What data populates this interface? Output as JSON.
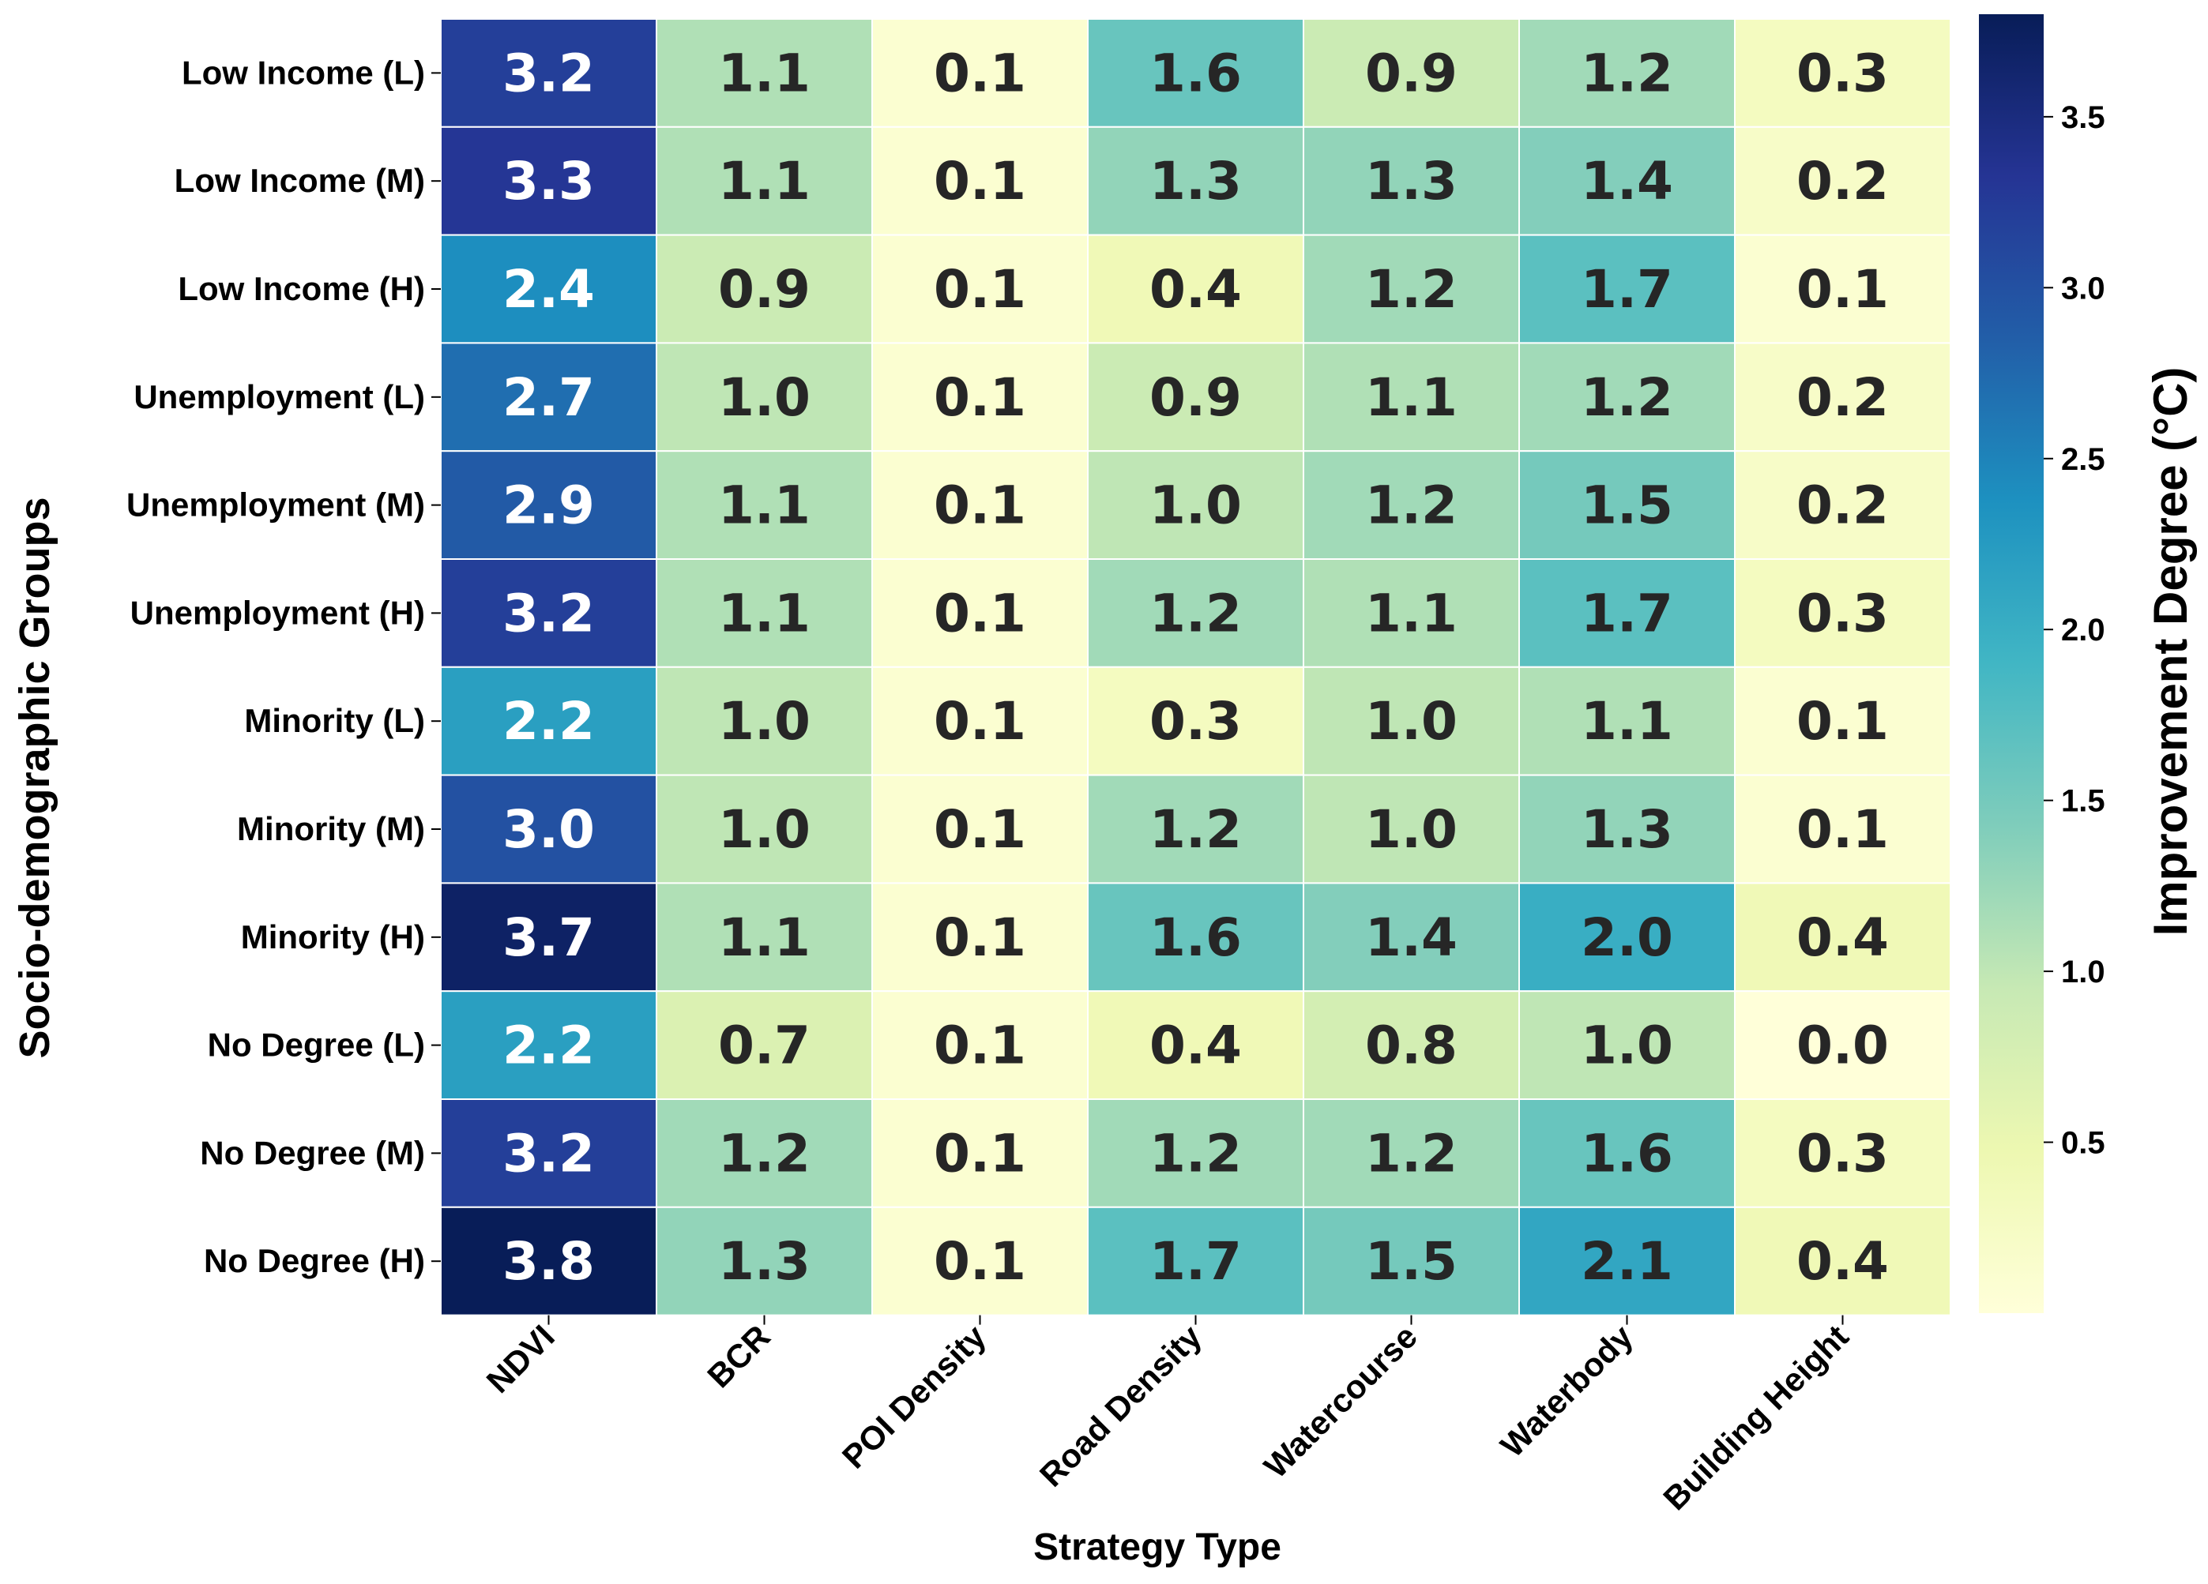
{
  "chart_data": {
    "type": "heatmap",
    "title": "",
    "xlabel": "Strategy Type",
    "ylabel": "Socio-demographic Groups",
    "colorbar_label": "Improvement Degree (°C)",
    "colormap": "YlGnBu",
    "colorbar_range": [
      0.0,
      3.8
    ],
    "colorbar_ticks": [
      0.5,
      1.0,
      1.5,
      2.0,
      2.5,
      3.0,
      3.5
    ],
    "colorbar_tick_labels": [
      "0.5",
      "1.0",
      "1.5",
      "2.0",
      "2.5",
      "3.0",
      "3.5"
    ],
    "columns": [
      "NDVI",
      "BCR",
      "POI Density",
      "Road Density",
      "Watercourse",
      "Waterbody",
      "Building Height"
    ],
    "rows": [
      "Low Income (L)",
      "Low Income (M)",
      "Low Income (H)",
      "Unemployment (L)",
      "Unemployment (M)",
      "Unemployment (H)",
      "Minority (L)",
      "Minority (M)",
      "Minority (H)",
      "No Degree (L)",
      "No Degree (M)",
      "No Degree (H)"
    ],
    "values": [
      [
        3.2,
        1.1,
        0.1,
        1.6,
        0.9,
        1.2,
        0.3
      ],
      [
        3.3,
        1.1,
        0.1,
        1.3,
        1.3,
        1.4,
        0.2
      ],
      [
        2.4,
        0.9,
        0.1,
        0.4,
        1.2,
        1.7,
        0.1
      ],
      [
        2.7,
        1.0,
        0.1,
        0.9,
        1.1,
        1.2,
        0.2
      ],
      [
        2.9,
        1.1,
        0.1,
        1.0,
        1.2,
        1.5,
        0.2
      ],
      [
        3.2,
        1.1,
        0.1,
        1.2,
        1.1,
        1.7,
        0.3
      ],
      [
        2.2,
        1.0,
        0.1,
        0.3,
        1.0,
        1.1,
        0.1
      ],
      [
        3.0,
        1.0,
        0.1,
        1.2,
        1.0,
        1.3,
        0.1
      ],
      [
        3.7,
        1.1,
        0.1,
        1.6,
        1.4,
        2.0,
        0.4
      ],
      [
        2.2,
        0.7,
        0.1,
        0.4,
        0.8,
        1.0,
        0.0
      ],
      [
        3.2,
        1.2,
        0.1,
        1.2,
        1.2,
        1.6,
        0.3
      ],
      [
        3.8,
        1.3,
        0.1,
        1.7,
        1.5,
        2.1,
        0.4
      ]
    ]
  }
}
